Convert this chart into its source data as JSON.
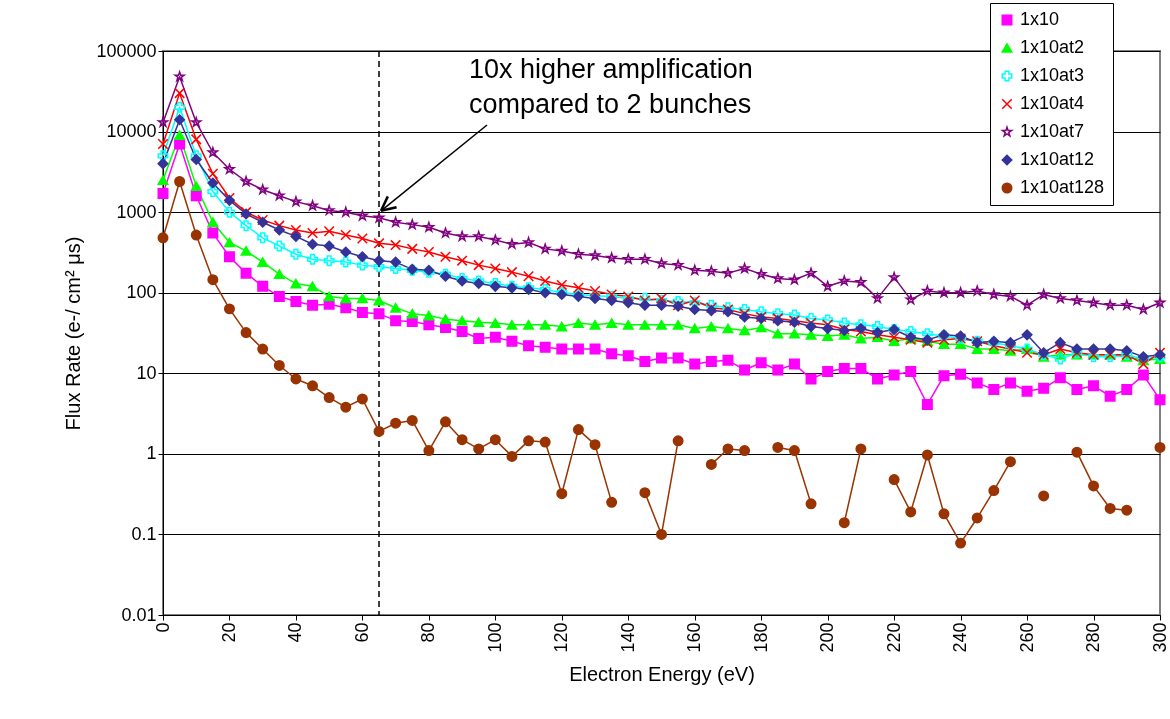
{
  "chart_data": {
    "type": "line",
    "xlabel": "Electron Energy (eV)",
    "ylabel": "Flux Rate (e-/ cm² μs)",
    "x": [
      0,
      5,
      10,
      15,
      20,
      25,
      30,
      35,
      40,
      45,
      50,
      55,
      60,
      65,
      70,
      75,
      80,
      85,
      90,
      95,
      100,
      105,
      110,
      115,
      120,
      125,
      130,
      135,
      140,
      145,
      150,
      155,
      160,
      165,
      170,
      175,
      180,
      185,
      190,
      195,
      200,
      205,
      210,
      215,
      220,
      225,
      230,
      235,
      240,
      245,
      250,
      255,
      260,
      265,
      270,
      275,
      280,
      285,
      290,
      295,
      300
    ],
    "xlim": [
      0,
      300
    ],
    "xticks": [
      0,
      20,
      40,
      60,
      80,
      100,
      120,
      140,
      160,
      180,
      200,
      220,
      240,
      260,
      280,
      300
    ],
    "log": "y",
    "ylim": [
      0.01,
      100000
    ],
    "yticks": [
      0.01,
      0.1,
      1,
      10,
      100,
      1000,
      10000,
      100000
    ],
    "grid": "y",
    "legend": "top right",
    "series": [
      {
        "name": "1x10",
        "color": "#ff00ff",
        "marker": "square",
        "values": [
          1700,
          7000,
          1600,
          550,
          280,
          175,
          120,
          90,
          78,
          70,
          72,
          65,
          57,
          55,
          45,
          44,
          40,
          37,
          33,
          27,
          28,
          25,
          22,
          21,
          20,
          20,
          20,
          17.5,
          16.5,
          14,
          15.5,
          15.5,
          13,
          14,
          14.5,
          11,
          13.5,
          11,
          13,
          8.5,
          10.5,
          11.5,
          11.5,
          8.5,
          9.5,
          10.5,
          4.1,
          9.3,
          9.7,
          7.6,
          6.3,
          7.6,
          6,
          6.5,
          8.8,
          6.3,
          7,
          5.2,
          6.3,
          9.5,
          4.7
        ]
      },
      {
        "name": "1x10at2",
        "color": "#00ff00",
        "marker": "triangle",
        "values": [
          2500,
          9000,
          2100,
          750,
          420,
          330,
          240,
          170,
          130,
          120,
          90,
          85,
          85,
          80,
          65,
          55,
          52,
          47,
          45,
          43,
          42,
          40,
          40,
          40,
          38,
          42,
          40,
          42,
          40,
          40,
          40,
          40,
          36,
          38,
          36,
          34,
          37,
          31,
          31,
          30,
          29,
          30,
          27,
          28,
          25,
          27,
          25,
          23,
          23,
          20,
          20,
          19,
          20,
          16,
          17,
          17,
          17,
          17,
          16,
          14.5,
          15
        ]
      },
      {
        "name": "1x10at3",
        "color": "#00ffff",
        "marker": "plus",
        "values": [
          5000,
          20000,
          5000,
          1800,
          1000,
          680,
          480,
          380,
          300,
          260,
          250,
          240,
          220,
          210,
          200,
          190,
          180,
          170,
          150,
          140,
          130,
          120,
          115,
          110,
          100,
          95,
          92,
          90,
          85,
          85,
          80,
          78,
          75,
          70,
          65,
          62,
          58,
          55,
          53,
          48,
          46,
          42,
          40,
          38,
          35,
          33,
          31,
          29,
          27,
          25,
          24,
          22,
          20,
          17,
          15,
          18,
          16,
          16,
          17,
          15,
          16
        ]
      },
      {
        "name": "1x10at4",
        "color": "#ff0000",
        "marker": "cross",
        "values": [
          7000,
          30000,
          8000,
          3000,
          1500,
          1000,
          800,
          680,
          600,
          550,
          580,
          520,
          470,
          410,
          390,
          350,
          320,
          280,
          250,
          220,
          200,
          180,
          160,
          140,
          125,
          115,
          105,
          95,
          90,
          80,
          85,
          70,
          80,
          65,
          62,
          55,
          50,
          48,
          45,
          42,
          40,
          35,
          33,
          30,
          28,
          26,
          24,
          26,
          27,
          25,
          22,
          20,
          18,
          17,
          20,
          18,
          17,
          17,
          17,
          13,
          18
        ]
      },
      {
        "name": "1x10at7",
        "color": "#800080",
        "marker": "star",
        "values": [
          13000,
          48000,
          13000,
          5500,
          3400,
          2400,
          1900,
          1600,
          1350,
          1200,
          1050,
          1000,
          900,
          850,
          750,
          700,
          650,
          550,
          500,
          500,
          450,
          400,
          420,
          350,
          330,
          300,
          290,
          270,
          260,
          260,
          230,
          220,
          190,
          185,
          175,
          200,
          170,
          150,
          145,
          175,
          120,
          140,
          135,
          85,
          155,
          82,
          105,
          100,
          100,
          105,
          95,
          90,
          70,
          95,
          85,
          80,
          75,
          70,
          70,
          62,
          75
        ]
      },
      {
        "name": "1x10at12",
        "color": "#333399",
        "marker": "diamond",
        "values": [
          4000,
          14000,
          4500,
          2300,
          1400,
          950,
          750,
          600,
          500,
          400,
          380,
          320,
          280,
          250,
          240,
          195,
          190,
          160,
          140,
          130,
          120,
          115,
          110,
          100,
          95,
          90,
          85,
          80,
          75,
          70,
          70,
          68,
          62,
          60,
          58,
          50,
          48,
          45,
          43,
          38,
          36,
          34,
          36,
          32,
          35,
          28,
          26,
          30,
          29,
          24,
          25,
          24,
          30,
          18,
          24,
          20,
          20,
          20,
          19,
          16,
          17
        ]
      },
      {
        "name": "1x10at128",
        "color": "#993300",
        "marker": "circle",
        "values": [
          480,
          2400,
          520,
          145,
          63,
          32,
          20,
          12.5,
          8.5,
          7,
          5,
          3.8,
          4.8,
          1.9,
          2.4,
          2.6,
          1.1,
          2.5,
          1.5,
          1.15,
          1.5,
          0.93,
          1.45,
          1.4,
          0.32,
          2.0,
          1.3,
          0.25,
          null,
          0.33,
          0.1,
          1.45,
          null,
          0.74,
          1.15,
          1.1,
          null,
          1.2,
          1.1,
          0.24,
          null,
          0.14,
          1.15,
          null,
          0.48,
          0.19,
          0.97,
          0.18,
          0.078,
          0.16,
          0.35,
          0.8,
          null,
          0.3,
          null,
          1.05,
          0.4,
          0.21,
          0.2,
          null,
          1.2
        ]
      }
    ],
    "ref_lines": [
      {
        "axis": "x",
        "value": 65,
        "line_style": "dashed",
        "color": "#000000"
      }
    ],
    "annotations": [
      {
        "text": "10x higher amplification\ncompared to 2 bunches",
        "x": 65,
        "y": 850
      }
    ]
  }
}
